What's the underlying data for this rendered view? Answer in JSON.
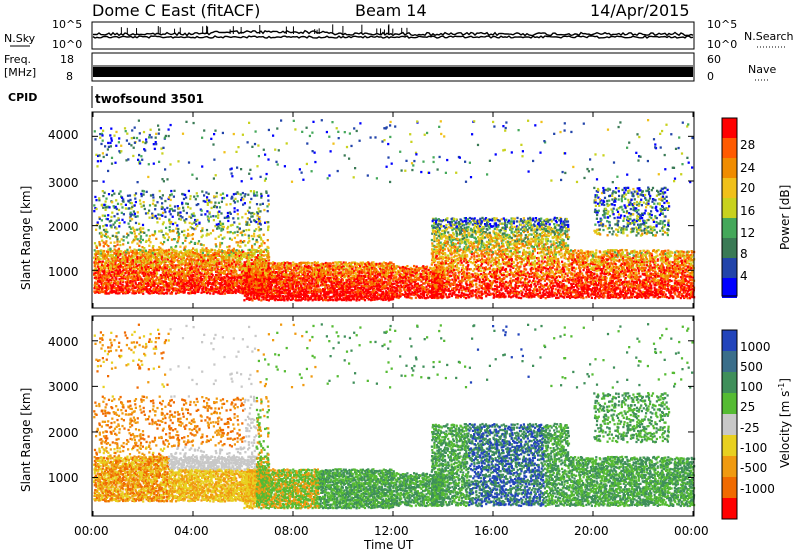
{
  "header": {
    "title": "Dome C East (fitACF)",
    "beam": "Beam 14",
    "date": "14/Apr/2015"
  },
  "noise_panel": {
    "left_label": "N.Sky",
    "right_label": "N.Search",
    "left_ticks": [
      "10^5",
      "10^0"
    ],
    "right_ticks": [
      "10^5",
      "10^0"
    ]
  },
  "freq_panel": {
    "left_label_line1": "Freq.",
    "left_label_line2": "[MHz]",
    "right_label": "Nave",
    "left_ticks": [
      "18",
      "8"
    ],
    "right_ticks": [
      "60",
      "0"
    ]
  },
  "cpid": {
    "label": "CPID",
    "value": "twofsound 3501"
  },
  "power_panel": {
    "ylabel": "Slant Range [km]",
    "yticks": [
      "4000",
      "3000",
      "2000",
      "1000"
    ],
    "colorbar_label": "Power [dB]",
    "colorbar_ticks": [
      "28",
      "24",
      "20",
      "16",
      "12",
      "8",
      "4"
    ]
  },
  "velocity_panel": {
    "ylabel": "Slant Range [km]",
    "yticks": [
      "4000",
      "3000",
      "2000",
      "1000"
    ],
    "colorbar_label": "Velocity [m s",
    "colorbar_label_sup": "-1",
    "colorbar_label_end": "]",
    "colorbar_ticks": [
      "1000",
      "500",
      "100",
      "25",
      "-25",
      "-100",
      "-500",
      "-1000"
    ]
  },
  "x_axis": {
    "label": "Time UT",
    "ticks": [
      "00:00",
      "04:00",
      "08:00",
      "12:00",
      "16:00",
      "20:00",
      "00:00"
    ]
  },
  "colors": {
    "power_scale": [
      "#0000ff",
      "#2244aa",
      "#3a7a55",
      "#44a85a",
      "#c8d21e",
      "#f0c01a",
      "#f08c00",
      "#ff5a00",
      "#ff0000"
    ],
    "velocity_scale": [
      "#2244bb",
      "#3a6e8a",
      "#3f8f5a",
      "#55bb33",
      "#c8c8c8",
      "#e8d020",
      "#f09a10",
      "#f06a00",
      "#ff0000"
    ]
  },
  "chart_data": [
    {
      "type": "line",
      "title": "N.Sky / N.Search",
      "x_range": [
        0,
        24
      ],
      "scale": "log",
      "y_range": [
        "10^0",
        "10^5"
      ]
    },
    {
      "type": "line",
      "title": "Freq. [MHz] / Nave",
      "x_range": [
        0,
        24
      ],
      "freq_range": [
        8,
        18
      ],
      "nave_range": [
        0,
        60
      ]
    },
    {
      "type": "heatmap",
      "name": "power",
      "x_range_hours": [
        0,
        24
      ],
      "y_range_km": [
        200,
        4500
      ],
      "colorbar_range_db": [
        0,
        30
      ],
      "description_unit": "dB"
    },
    {
      "type": "heatmap",
      "name": "velocity",
      "x_range_hours": [
        0,
        24
      ],
      "y_range_km": [
        200,
        4500
      ],
      "colorbar_range_ms": [
        -1000,
        1000
      ],
      "description_unit": "m s-1"
    }
  ]
}
